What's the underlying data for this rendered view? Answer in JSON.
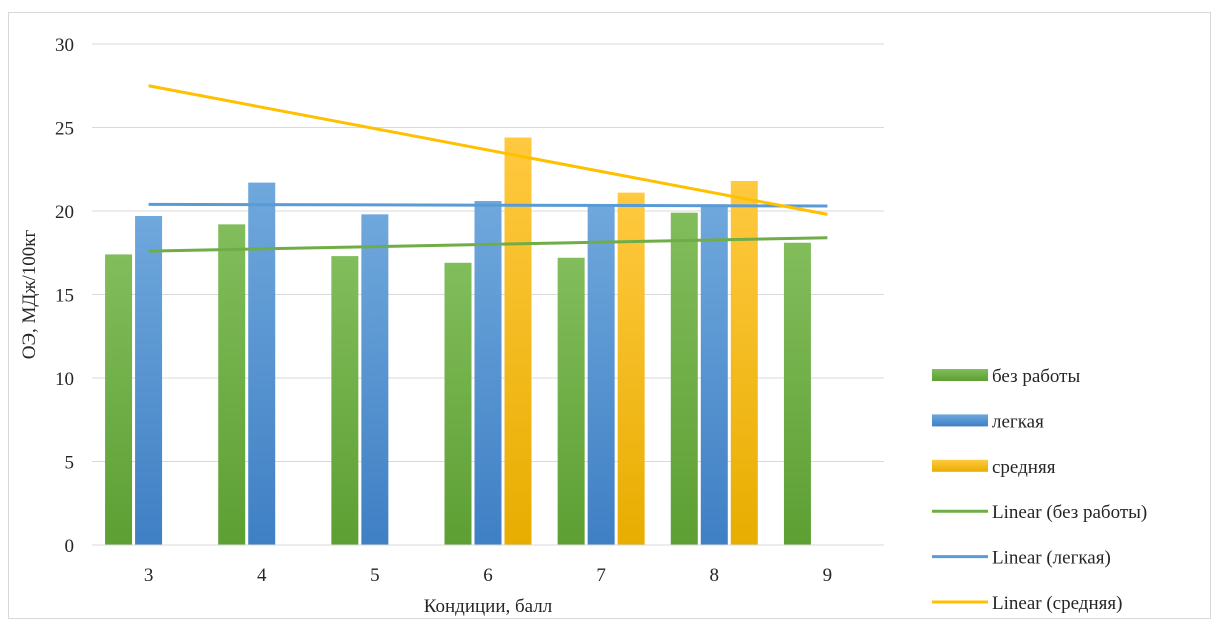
{
  "chart_data": {
    "type": "bar",
    "title": "",
    "xlabel": "Кондиции, балл",
    "ylabel": "ОЭ, МДж/100кг",
    "categories": [
      "3",
      "4",
      "5",
      "6",
      "7",
      "8",
      "9"
    ],
    "ylim": [
      0,
      30
    ],
    "yticks": [
      0,
      5,
      10,
      15,
      20,
      25,
      30
    ],
    "grid": "horizontal",
    "legend_position": "right",
    "series": [
      {
        "name": "без работы",
        "color": "#70ad47",
        "values": [
          17.4,
          19.2,
          17.3,
          16.9,
          17.2,
          19.9,
          18.1
        ]
      },
      {
        "name": "легкая",
        "color": "#5b9bd5",
        "values": [
          19.7,
          21.7,
          19.8,
          20.6,
          20.4,
          20.4,
          null
        ]
      },
      {
        "name": "средняя",
        "color": "#ffc000",
        "values": [
          null,
          null,
          null,
          24.4,
          21.1,
          21.8,
          null
        ]
      }
    ],
    "trendlines": [
      {
        "name": "Linear (без работы)",
        "color": "#70ad47",
        "start": 17.6,
        "end": 18.4
      },
      {
        "name": "Linear (легкая)",
        "color": "#5b9bd5",
        "start": 20.4,
        "end": 20.3
      },
      {
        "name": "Linear (средняя)",
        "color": "#ffc000",
        "start": 27.5,
        "end": 19.8
      }
    ]
  }
}
